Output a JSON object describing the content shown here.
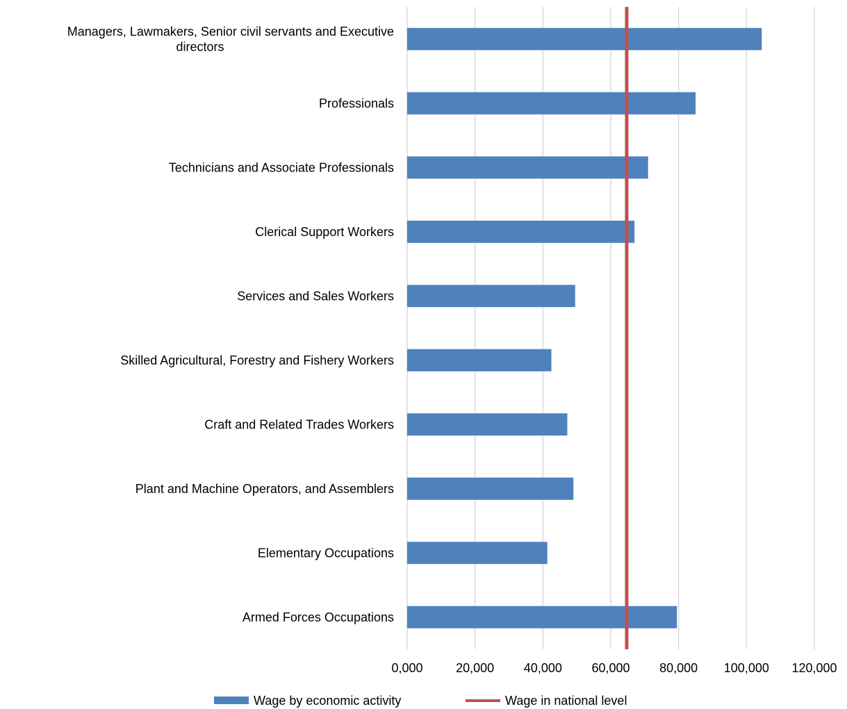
{
  "chart_data": {
    "type": "bar",
    "orientation": "horizontal",
    "categories": [
      [
        "Managers, Lawmakers, Senior civil servants and Executive",
        "directors"
      ],
      [
        "Professionals"
      ],
      [
        "Technicians and Associate Professionals"
      ],
      [
        "Clerical Support Workers"
      ],
      [
        "Services and Sales Workers"
      ],
      [
        "Skilled Agricultural, Forestry and Fishery Workers"
      ],
      [
        "Craft and Related Trades Workers"
      ],
      [
        "Plant and Machine Operators, and Assemblers"
      ],
      [
        "Elementary Occupations"
      ],
      [
        "Armed Forces Occupations"
      ]
    ],
    "series": [
      {
        "name": "Wage by economic activity",
        "type": "bar",
        "color": "#4f81bd",
        "values": [
          104500,
          85000,
          71000,
          67000,
          49500,
          42500,
          47200,
          49000,
          41300,
          79500
        ]
      },
      {
        "name": "Wage in national level",
        "type": "line",
        "color": "#c0504d",
        "value": 64700
      }
    ],
    "xlim": [
      0,
      120000
    ],
    "xticks": [
      "0,000",
      "20,000",
      "40,000",
      "60,000",
      "80,000",
      "100,000",
      "120,000"
    ],
    "xlabel": "",
    "ylabel": "",
    "title": "",
    "grid": "vertical",
    "legend_position": "bottom"
  }
}
